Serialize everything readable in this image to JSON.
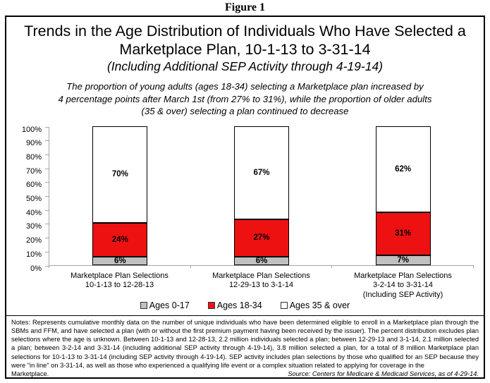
{
  "figure_label": "Figure 1",
  "title": {
    "line1": "Trends in the Age Distribution of Individuals Who Have Selected a",
    "line2": "Marketplace Plan, 10-1-13 to 3-31-14",
    "line3": "(Including Additional SEP Activity through 4-19-14)"
  },
  "description": {
    "line1": "The proportion of young adults (ages 18-34) selecting a Marketplace plan increased by",
    "line2": "4 percentage points after March 1st (from 27% to 31%), while the proportion of older adults",
    "line3": "(35 & over) selecting a plan continued to decrease"
  },
  "chart_data": {
    "type": "bar",
    "stacked": true,
    "grid": false,
    "legend_position": "bottom",
    "ylim": [
      0,
      100
    ],
    "yticks": [
      "100%",
      "90%",
      "80%",
      "70%",
      "60%",
      "50%",
      "40%",
      "30%",
      "20%",
      "10%",
      "0%"
    ],
    "value_suffix": "%",
    "categories": [
      [
        "Marketplace Plan Selections",
        "10-1-13 to 12-28-13"
      ],
      [
        "Marketplace Plan Selections",
        "12-29-13 to 3-1-14"
      ],
      [
        "Marketplace Plan Selections",
        "3-2-14 to 3-31-14",
        "(Including SEP Activity)"
      ]
    ],
    "series": [
      {
        "name": "Ages 0-17",
        "color": "#c0c0c0",
        "values": [
          6,
          6,
          7
        ]
      },
      {
        "name": "Ages 18-34",
        "color": "#ee1111",
        "values": [
          24,
          27,
          31
        ]
      },
      {
        "name": "Ages 35 & over",
        "color": "#ffffff",
        "values": [
          70,
          67,
          62
        ]
      }
    ],
    "colors": {
      "axis": "#a6a6a6",
      "bar_border": "#000000"
    }
  },
  "notes": {
    "body": "Notes:  Represents cumulative monthly data on the number of unique individuals who have been determined eligible to enroll in a Marketplace plan through the SBMs and FFM, and have selected a plan (with or without the first premium payment having been received by the issuer).  The percent distribution excludes plan selections where the age is unknown.  Between 10-1-13 and 12-28-13, 2.2 million individuals selected a plan; between 12-29-13 and 3-1-14, 2.1 million selected a plan; between 3-2-14 and 3-31-14 (including additional SEP activity through 4-19-14), 3.8 million selected a plan, for a total of 8 million Marketplace plan selections for 10-1-13 to 3-31-14 (including SEP activity through 4-19-14).  SEP activity includes plan selections by those who qualified for an SEP because they were \"in line\" on 3-31-14, as well as those who experienced a qualifying life event or a complex situation related to applying for coverage in the",
    "last_line_left": "Marketplace.",
    "source": "Source:  Centers for Medicare & Medicaid Services, as of 4-29-14."
  }
}
